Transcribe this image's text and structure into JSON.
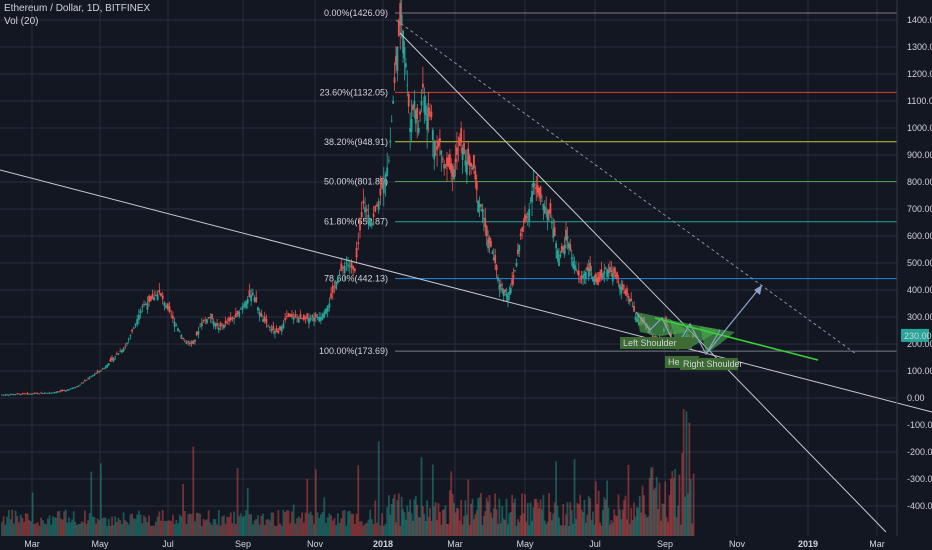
{
  "header": {
    "symbol": "Ethereum / Dollar, 1D, BITFINEX",
    "indicator": "Vol (20)"
  },
  "colors": {
    "background": "#131722",
    "up": "#26a69a",
    "down": "#ef5350",
    "grid": "#2a2e39",
    "trendline": "#c8cad3",
    "pattern_fill": "#4caf50",
    "neckline": "#3bd13b",
    "projection": "#8fa4c8"
  },
  "chart_data": {
    "type": "candlestick",
    "symbol": "ETHUSD",
    "timeframe": "1D",
    "exchange": "BITFINEX",
    "x_ticks": [
      "Mar",
      "May",
      "Jul",
      "Sep",
      "Nov",
      "2018",
      "Mar",
      "May",
      "Jul",
      "Sep",
      "Nov",
      "2019",
      "Mar"
    ],
    "y_ticks": [
      1400,
      1300,
      1200,
      1100,
      1000,
      900,
      800,
      700,
      600,
      500,
      400,
      300,
      200,
      100,
      0,
      -100,
      -200,
      -300,
      -400
    ],
    "y_tick_labels": [
      "1400.00",
      "1300.00",
      "1200.00",
      "1100.00",
      "1000.00",
      "900.00",
      "800.00",
      "700.00",
      "600.00",
      "500.00",
      "400.00",
      "300.00",
      "200.00",
      "100.00",
      "0.00",
      "-100.00",
      "-200.00",
      "-300.00",
      "-400.00"
    ],
    "ylim": [
      -540,
      1460
    ],
    "last_price": "230.00",
    "fib_levels": [
      {
        "label": "0.00%(1426.09)",
        "price": 1426.09,
        "color": "#787b86"
      },
      {
        "label": "23.60%(1132.05)",
        "price": 1132.05,
        "color": "#e53935"
      },
      {
        "label": "38.20%(948.91)",
        "price": 948.91,
        "color": "#c0ca33"
      },
      {
        "label": "50.00%(801.89)",
        "price": 801.89,
        "color": "#43a047"
      },
      {
        "label": "61.80%(652.87)",
        "price": 652.87,
        "color": "#26a69a"
      },
      {
        "label": "78.60%(442.13)",
        "price": 442.13,
        "color": "#1e88e5"
      },
      {
        "label": "100.00%(173.69)",
        "price": 173.69,
        "color": "#787b86"
      }
    ],
    "annotations": [
      "Left Shoulder",
      "Head",
      "Right Shoulder"
    ],
    "price_path": [
      [
        0,
        12
      ],
      [
        4,
        14
      ],
      [
        8,
        16
      ],
      [
        12,
        20
      ],
      [
        15,
        28
      ],
      [
        18,
        45
      ],
      [
        21,
        80
      ],
      [
        24,
        110
      ],
      [
        27,
        160
      ],
      [
        29,
        190
      ],
      [
        31,
        260
      ],
      [
        33,
        340
      ],
      [
        35,
        360
      ],
      [
        37,
        390
      ],
      [
        39,
        330
      ],
      [
        41,
        270
      ],
      [
        43,
        210
      ],
      [
        45,
        200
      ],
      [
        47,
        280
      ],
      [
        49,
        300
      ],
      [
        51,
        260
      ],
      [
        53,
        280
      ],
      [
        55,
        300
      ],
      [
        57,
        350
      ],
      [
        59,
        390
      ],
      [
        61,
        300
      ],
      [
        63,
        260
      ],
      [
        65,
        240
      ],
      [
        67,
        300
      ],
      [
        69,
        300
      ],
      [
        71,
        290
      ],
      [
        73,
        300
      ],
      [
        75,
        300
      ],
      [
        77,
        350
      ],
      [
        79,
        450
      ],
      [
        81,
        500
      ],
      [
        83,
        470
      ],
      [
        85,
        720
      ],
      [
        87,
        650
      ],
      [
        89,
        750
      ],
      [
        91,
        880
      ],
      [
        92,
        1100
      ],
      [
        93,
        1300
      ],
      [
        94,
        1420
      ],
      [
        95,
        1240
      ],
      [
        96,
        1000
      ],
      [
        97,
        1100
      ],
      [
        98,
        1000
      ],
      [
        99,
        1150
      ],
      [
        100,
        1050
      ],
      [
        101,
        1040
      ],
      [
        102,
        900
      ],
      [
        103,
        950
      ],
      [
        104,
        850
      ],
      [
        105,
        860
      ],
      [
        106,
        820
      ],
      [
        107,
        900
      ],
      [
        108,
        950
      ],
      [
        109,
        880
      ],
      [
        110,
        860
      ],
      [
        111,
        850
      ],
      [
        112,
        730
      ],
      [
        113,
        700
      ],
      [
        114,
        600
      ],
      [
        115,
        560
      ],
      [
        116,
        500
      ],
      [
        117,
        420
      ],
      [
        118,
        400
      ],
      [
        119,
        380
      ],
      [
        120,
        420
      ],
      [
        121,
        500
      ],
      [
        122,
        600
      ],
      [
        123,
        650
      ],
      [
        124,
        700
      ],
      [
        125,
        800
      ],
      [
        126,
        760
      ],
      [
        127,
        730
      ],
      [
        128,
        700
      ],
      [
        129,
        680
      ],
      [
        130,
        600
      ],
      [
        131,
        520
      ],
      [
        132,
        550
      ],
      [
        133,
        600
      ],
      [
        134,
        520
      ],
      [
        135,
        480
      ],
      [
        136,
        440
      ],
      [
        137,
        460
      ],
      [
        138,
        480
      ],
      [
        139,
        450
      ],
      [
        140,
        420
      ],
      [
        141,
        450
      ],
      [
        142,
        480
      ],
      [
        143,
        470
      ],
      [
        144,
        460
      ],
      [
        145,
        430
      ],
      [
        146,
        400
      ],
      [
        147,
        380
      ],
      [
        148,
        360
      ],
      [
        149,
        300
      ],
      [
        150,
        280
      ],
      [
        151,
        280
      ],
      [
        152,
        250
      ],
      [
        153,
        230
      ],
      [
        154,
        220
      ],
      [
        155,
        210
      ],
      [
        156,
        280
      ],
      [
        157,
        240
      ],
      [
        158,
        200
      ],
      [
        159,
        190
      ],
      [
        160,
        210
      ],
      [
        161,
        230
      ],
      [
        162,
        220
      ],
      [
        163,
        230
      ]
    ]
  }
}
